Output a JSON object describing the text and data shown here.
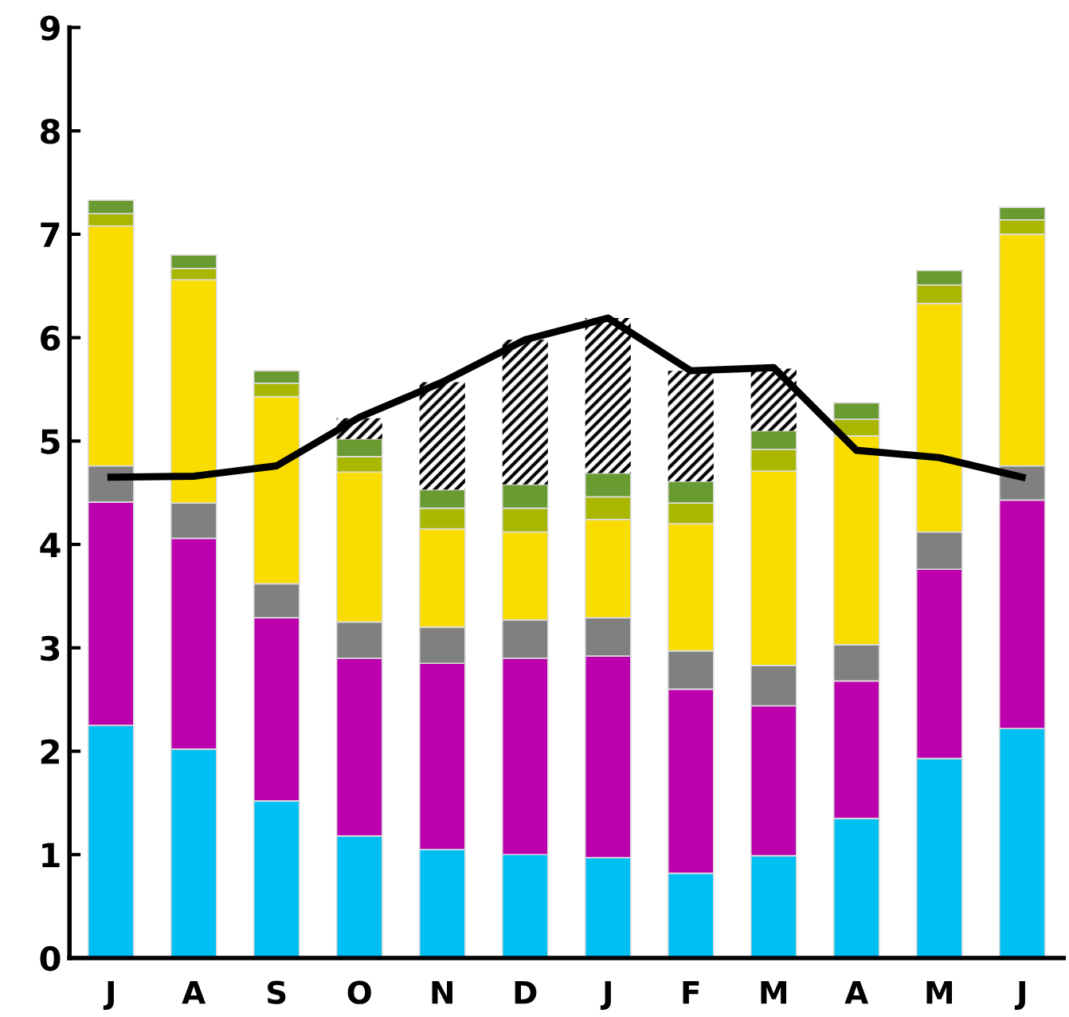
{
  "chart_data": {
    "type": "bar",
    "stacked": true,
    "categories": [
      "J",
      "A",
      "S",
      "O",
      "N",
      "D",
      "J",
      "F",
      "M",
      "A",
      "M",
      "J"
    ],
    "ylim": [
      0,
      9
    ],
    "yticks": [
      0,
      1,
      2,
      3,
      4,
      5,
      6,
      7,
      8,
      9
    ],
    "grid": false,
    "legend": false,
    "series": [
      {
        "color": "#00bff3",
        "values": [
          2.25,
          2.02,
          1.52,
          1.18,
          1.05,
          1.0,
          0.97,
          0.82,
          0.99,
          1.35,
          1.93,
          2.22
        ]
      },
      {
        "color": "#bd00ad",
        "values": [
          2.16,
          2.04,
          1.77,
          1.72,
          1.8,
          1.9,
          1.95,
          1.78,
          1.45,
          1.33,
          1.83,
          2.21
        ]
      },
      {
        "color": "#808080",
        "values": [
          0.35,
          0.34,
          0.33,
          0.35,
          0.35,
          0.37,
          0.37,
          0.37,
          0.39,
          0.35,
          0.36,
          0.33
        ]
      },
      {
        "color": "#f9dc00",
        "values": [
          2.32,
          2.16,
          1.81,
          1.45,
          0.95,
          0.85,
          0.95,
          1.23,
          1.88,
          2.02,
          2.21,
          2.24
        ]
      },
      {
        "color": "#a9b700",
        "values": [
          0.12,
          0.11,
          0.13,
          0.15,
          0.2,
          0.23,
          0.22,
          0.2,
          0.21,
          0.16,
          0.18,
          0.14
        ]
      },
      {
        "color": "#6a9a32",
        "values": [
          0.13,
          0.13,
          0.12,
          0.17,
          0.18,
          0.23,
          0.23,
          0.21,
          0.18,
          0.16,
          0.14,
          0.12
        ]
      },
      {
        "color": "#000000",
        "values": [
          null,
          null,
          null,
          0.2,
          1.04,
          1.4,
          1.5,
          1.07,
          0.6,
          null,
          null,
          null
        ]
      },
      {
        "type": "line",
        "color": "#000000",
        "marker": "none",
        "line_style": "solid",
        "values": [
          4.65,
          4.66,
          4.76,
          5.23,
          5.57,
          5.98,
          6.19,
          5.68,
          5.71,
          4.91,
          4.84,
          4.65
        ]
      }
    ]
  }
}
